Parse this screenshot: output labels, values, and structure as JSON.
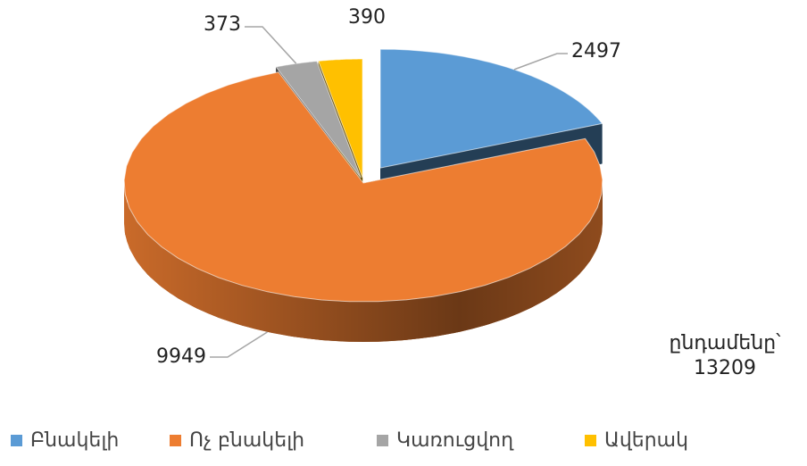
{
  "chart_data": {
    "type": "pie",
    "categories": [
      "Բնակելի",
      "Ոչ բնակելի",
      "Կառուցվող",
      "Ավերակ"
    ],
    "series": [
      {
        "values": [
          2497,
          9949,
          373,
          390
        ],
        "colors": [
          "#5b9bd5",
          "#ed7d31",
          "#a5a5a5",
          "#ffc000"
        ]
      }
    ],
    "annotation": {
      "label": "ընդամենը՝",
      "value": 13209
    },
    "legend": "bottom"
  }
}
